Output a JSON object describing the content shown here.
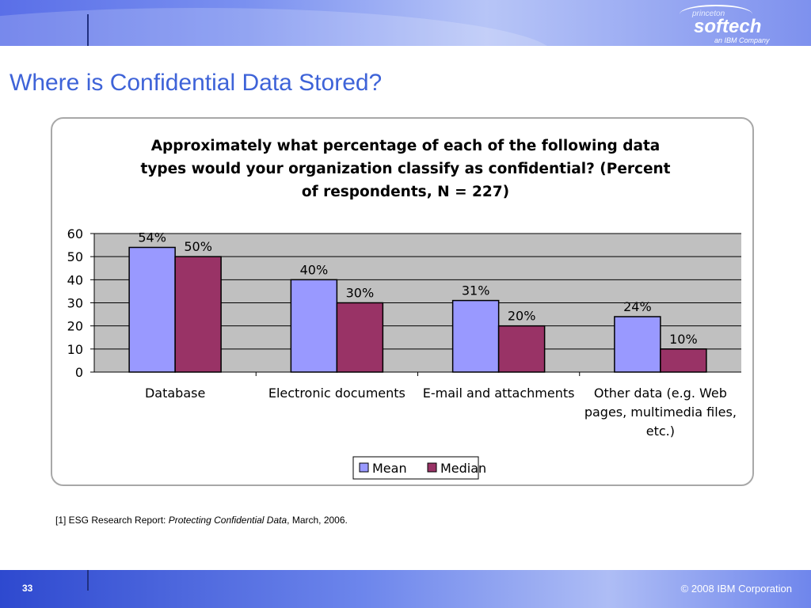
{
  "slide": {
    "title": "Where is Confidential Data Stored?",
    "footnote_prefix": "[1] ESG Research Report: ",
    "footnote_italic": "Protecting Confidential Data",
    "footnote_suffix": ", March, 2006.",
    "page_number": "33",
    "copyright": "© 2008 IBM Corporation"
  },
  "logo": {
    "small_text": "princeton",
    "brand_text": "softech",
    "sub_text": "an IBM Company"
  },
  "colors": {
    "mean": "#9999ff",
    "median": "#993366",
    "plot_bg": "#c0c0c0",
    "title_blue": "#3e63d8"
  },
  "chart_data": {
    "type": "bar",
    "title_lines": [
      "Approximately what percentage of each of the following data",
      "types would your organization classify as confidential? (Percent",
      "of respondents, N = 227)"
    ],
    "categories": [
      [
        "Database"
      ],
      [
        "Electronic documents"
      ],
      [
        "E-mail and attachments"
      ],
      [
        "Other data (e.g. Web",
        "pages, multimedia files,",
        "etc.)"
      ]
    ],
    "series": [
      {
        "name": "Mean",
        "values": [
          54,
          40,
          31,
          24
        ],
        "labels": [
          "54%",
          "40%",
          "31%",
          "24%"
        ]
      },
      {
        "name": "Median",
        "values": [
          50,
          30,
          20,
          10
        ],
        "labels": [
          "50%",
          "30%",
          "20%",
          "10%"
        ]
      }
    ],
    "ylim": [
      0,
      60
    ],
    "yticks": [
      0,
      10,
      20,
      30,
      40,
      50,
      60
    ],
    "grid": true,
    "legend_position": "bottom"
  }
}
